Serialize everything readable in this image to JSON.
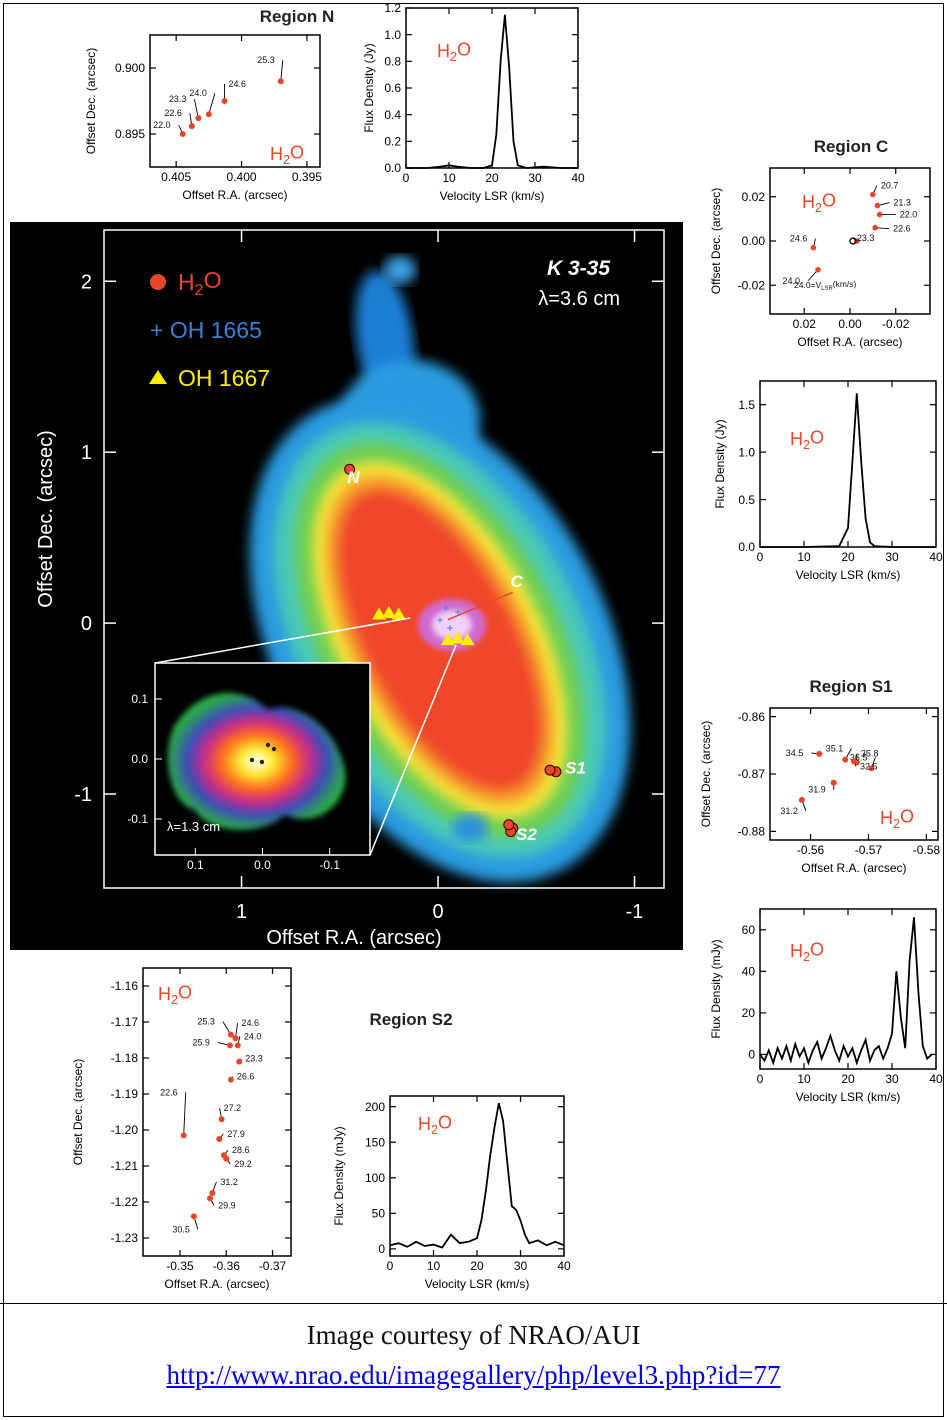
{
  "caption": {
    "credit": "Image courtesy of NRAO/AUI",
    "link": "http://www.nrao.edu/imagegallery/php/level3.php?id=77"
  },
  "colors": {
    "h2o": "#e8462a",
    "oh1665": "#3d7fd0",
    "oh1667": "#ffee00"
  },
  "chart_data": [
    {
      "id": "main",
      "type": "scatter",
      "title": "K 3-35",
      "subtitle": "λ=3.6 cm",
      "xlabel": "Offset R.A. (arcsec)",
      "ylabel": "Offset Dec. (arcsec)",
      "xlim": [
        1.7,
        -1.15
      ],
      "ylim": [
        -1.55,
        2.3
      ],
      "xticks": [
        1,
        0,
        -1
      ],
      "yticks": [
        2,
        1,
        0,
        -1
      ],
      "legend_position": "top-left",
      "legend": [
        {
          "label": "H",
          "sub": "2",
          "tail": "O",
          "color": "#e8462a",
          "marker": "circle"
        },
        {
          "label": "+ OH 1665",
          "sub": "",
          "tail": "",
          "color": "#3d7fd0",
          "marker": "none"
        },
        {
          "label": "OH 1667",
          "sub": "",
          "tail": "",
          "color": "#ffee00",
          "marker": "triangle"
        }
      ],
      "region_labels": [
        {
          "label": "N",
          "x": 0.43,
          "y": 0.82
        },
        {
          "label": "C",
          "x": -0.4,
          "y": 0.21
        },
        {
          "label": "S1",
          "x": -0.7,
          "y": -0.88
        },
        {
          "label": "S2",
          "x": -0.45,
          "y": -1.27
        }
      ],
      "h2o_points": [
        {
          "x": 0.45,
          "y": 0.9
        },
        {
          "x": -0.6,
          "y": -0.87
        },
        {
          "x": -0.57,
          "y": -0.86
        },
        {
          "x": -0.38,
          "y": -1.2
        },
        {
          "x": -0.37,
          "y": -1.22
        },
        {
          "x": -0.36,
          "y": -1.18
        }
      ],
      "oh1667_points": [
        {
          "x": 0.3,
          "y": 0.05
        },
        {
          "x": 0.25,
          "y": 0.06
        },
        {
          "x": 0.2,
          "y": 0.05
        },
        {
          "x": -0.05,
          "y": -0.1
        },
        {
          "x": -0.1,
          "y": -0.09
        },
        {
          "x": -0.15,
          "y": -0.1
        }
      ],
      "inset": {
        "label": "λ=1.3 cm",
        "xlim": [
          0.16,
          -0.16
        ],
        "ylim": [
          -0.16,
          0.16
        ],
        "xticks": [
          0.1,
          0.0,
          -0.1
        ],
        "yticks": [
          0.1,
          0.0,
          -0.1
        ]
      }
    },
    {
      "id": "regionN_pos",
      "type": "scatter",
      "title": "Region N",
      "xlabel": "Offset R.A. (arcsec)",
      "ylabel": "Offset Dec. (arcsec)",
      "xlim": [
        0.407,
        0.394
      ],
      "ylim": [
        0.8925,
        0.9025
      ],
      "xticks": [
        0.405,
        0.4,
        0.395
      ],
      "xtick_labels": [
        "0.405",
        "0.400",
        "0.395"
      ],
      "yticks": [
        0.9,
        0.895
      ],
      "ytick_labels": [
        "0.900",
        "0.895"
      ],
      "annotation": {
        "label": "H",
        "sub": "2",
        "tail": "O"
      },
      "points": [
        {
          "x": 0.4045,
          "y": 0.895,
          "label": "22.0"
        },
        {
          "x": 0.4038,
          "y": 0.8956,
          "label": "22.6"
        },
        {
          "x": 0.4033,
          "y": 0.8962,
          "label": "23.3"
        },
        {
          "x": 0.4025,
          "y": 0.8965,
          "label": "24.0"
        },
        {
          "x": 0.4013,
          "y": 0.8975,
          "label": "24.6"
        },
        {
          "x": 0.397,
          "y": 0.899,
          "label": "25.3"
        }
      ]
    },
    {
      "id": "regionN_spec",
      "type": "line",
      "xlabel": "Velocity LSR (km/s)",
      "ylabel": "Flux Density (Jy)",
      "xlim": [
        0,
        40
      ],
      "ylim": [
        0,
        1.2
      ],
      "xticks": [
        0,
        10,
        20,
        30,
        40
      ],
      "yticks": [
        0,
        0.2,
        0.4,
        0.6,
        0.8,
        1.0,
        1.2
      ],
      "ytick_labels": [
        "0.0",
        "0.2",
        "0.4",
        "0.6",
        "0.8",
        "1.0",
        "1.2"
      ],
      "annotation": {
        "label": "H",
        "sub": "2",
        "tail": "O"
      },
      "x": [
        0,
        5,
        8,
        10,
        12,
        15,
        18,
        20,
        21,
        22,
        23,
        24,
        25,
        26,
        28,
        32,
        36,
        40
      ],
      "values": [
        0,
        0,
        0.01,
        0.02,
        0.01,
        0,
        0,
        0.02,
        0.25,
        0.8,
        1.15,
        0.75,
        0.2,
        0.02,
        0,
        0.01,
        0,
        0
      ]
    },
    {
      "id": "regionC_pos",
      "type": "scatter",
      "title": "Region C",
      "xlabel": "Offset R.A. (arcsec)",
      "ylabel": "Offset Dec. (arcsec)",
      "xlim": [
        0.035,
        -0.035
      ],
      "ylim": [
        -0.033,
        0.033
      ],
      "xticks": [
        0.02,
        0,
        -0.02
      ],
      "xtick_labels": [
        "0.02",
        "0.00",
        "-0.02"
      ],
      "yticks": [
        0.02,
        0,
        -0.02
      ],
      "ytick_labels": [
        "0.02",
        "0.00",
        "-0.02"
      ],
      "annotation": {
        "label": "H",
        "sub": "2",
        "tail": "O"
      },
      "legend_note": "24.0=V",
      "legend_note_sub": "LSR",
      "legend_note_tail": "(km/s)",
      "points": [
        {
          "x": -0.01,
          "y": 0.021,
          "label": "20.7"
        },
        {
          "x": -0.012,
          "y": 0.016,
          "label": "21.3"
        },
        {
          "x": -0.013,
          "y": 0.012,
          "label": "22.0"
        },
        {
          "x": -0.011,
          "y": 0.006,
          "label": "22.6"
        },
        {
          "x": -0.003,
          "y": 0.0,
          "label": "23.3"
        },
        {
          "x": 0.016,
          "y": -0.003,
          "label": "24.6"
        },
        {
          "x": 0.014,
          "y": -0.013,
          "label": "24.0"
        }
      ]
    },
    {
      "id": "regionC_spec",
      "type": "line",
      "xlabel": "Velocity LSR (km/s)",
      "ylabel": "Flux Density (Jy)",
      "xlim": [
        0,
        40
      ],
      "ylim": [
        0,
        1.75
      ],
      "xticks": [
        0,
        10,
        20,
        30,
        40
      ],
      "yticks": [
        0,
        0.5,
        1.0,
        1.5
      ],
      "ytick_labels": [
        "0.0",
        "0.5",
        "1.0",
        "1.5"
      ],
      "annotation": {
        "label": "H",
        "sub": "2",
        "tail": "O"
      },
      "x": [
        0,
        10,
        18,
        20,
        21,
        22,
        23,
        24,
        25,
        26,
        30,
        40
      ],
      "values": [
        0,
        0,
        0.01,
        0.2,
        0.9,
        1.62,
        0.9,
        0.3,
        0.05,
        0.01,
        0,
        0
      ]
    },
    {
      "id": "regionS1_pos",
      "type": "scatter",
      "title": "Region S1",
      "xlabel": "Offset R.A. (arcsec)",
      "ylabel": "Offset Dec. (arcsec)",
      "xlim": [
        -0.553,
        -0.582
      ],
      "ylim": [
        -0.8815,
        -0.8585
      ],
      "xticks": [
        -0.56,
        -0.57,
        -0.58
      ],
      "xtick_labels": [
        "-0.56",
        "-0.57",
        "-0.58"
      ],
      "yticks": [
        -0.86,
        -0.87,
        -0.88
      ],
      "ytick_labels": [
        "-0.86",
        "-0.87",
        "-0.88"
      ],
      "annotation": {
        "label": "H",
        "sub": "2",
        "tail": "O"
      },
      "points": [
        {
          "x": -0.5615,
          "y": -0.8665,
          "label": "34.5"
        },
        {
          "x": -0.566,
          "y": -0.8675,
          "label": "35.1"
        },
        {
          "x": -0.568,
          "y": -0.868,
          "label": "35.8"
        },
        {
          "x": -0.5705,
          "y": -0.869,
          "label": "36.5"
        },
        {
          "x": -0.5675,
          "y": -0.8678,
          "label": "32.5"
        },
        {
          "x": -0.564,
          "y": -0.8715,
          "label": "31.9"
        },
        {
          "x": -0.5585,
          "y": -0.8745,
          "label": "31.2"
        }
      ]
    },
    {
      "id": "regionS1_spec",
      "type": "line",
      "xlabel": "Velocity LSR (km/s)",
      "ylabel": "Flux Density (mJy)",
      "xlim": [
        0,
        40
      ],
      "ylim": [
        -7,
        70
      ],
      "xticks": [
        0,
        10,
        20,
        30,
        40
      ],
      "yticks": [
        0,
        20,
        40,
        60
      ],
      "annotation": {
        "label": "H",
        "sub": "2",
        "tail": "O"
      },
      "x": [
        0,
        1,
        2,
        3,
        4,
        5,
        6,
        7,
        8,
        9,
        10,
        11,
        12,
        13,
        14,
        15,
        16,
        17,
        18,
        19,
        20,
        21,
        22,
        23,
        24,
        25,
        26,
        27,
        28,
        29,
        30,
        31,
        32,
        33,
        34,
        35,
        36,
        37,
        38,
        39
      ],
      "values": [
        0,
        -3,
        2,
        -4,
        3,
        -2,
        4,
        -3,
        5,
        -1,
        3,
        -4,
        2,
        6,
        -2,
        3,
        9,
        2,
        -3,
        4,
        -1,
        3,
        -4,
        2,
        7,
        -3,
        2,
        4,
        -2,
        3,
        10,
        40,
        18,
        3,
        45,
        66,
        30,
        4,
        -2,
        0
      ]
    },
    {
      "id": "regionS2_pos",
      "type": "scatter",
      "title": "Region S2",
      "xlabel": "Offset R.A. (arcsec)",
      "ylabel": "Offset Dec. (arcsec)",
      "xlim": [
        -0.342,
        -0.374
      ],
      "ylim": [
        -1.235,
        -1.155
      ],
      "xticks": [
        -0.35,
        -0.36,
        -0.37
      ],
      "yticks": [
        -1.16,
        -1.17,
        -1.18,
        -1.19,
        -1.2,
        -1.21,
        -1.22,
        -1.23
      ],
      "ytick_labels": [
        "-1.16",
        "-1.17",
        "-1.18",
        "-1.19",
        "-1.20",
        "-1.21",
        "-1.22",
        "-1.23"
      ],
      "annotation": {
        "label": "H",
        "sub": "2",
        "tail": "O"
      },
      "points": [
        {
          "x": -0.361,
          "y": -1.1735,
          "label": "25.3"
        },
        {
          "x": -0.362,
          "y": -1.1745,
          "label": "24.6"
        },
        {
          "x": -0.3608,
          "y": -1.1765,
          "label": "25.9"
        },
        {
          "x": -0.3625,
          "y": -1.1765,
          "label": "24.0"
        },
        {
          "x": -0.3628,
          "y": -1.181,
          "label": "23.3"
        },
        {
          "x": -0.361,
          "y": -1.186,
          "label": "26.6"
        },
        {
          "x": -0.359,
          "y": -1.197,
          "label": "27.2"
        },
        {
          "x": -0.3508,
          "y": -1.2015,
          "label": "22.6"
        },
        {
          "x": -0.3585,
          "y": -1.2025,
          "label": "27.9"
        },
        {
          "x": -0.3595,
          "y": -1.207,
          "label": "28.6"
        },
        {
          "x": -0.36,
          "y": -1.208,
          "label": "29.2"
        },
        {
          "x": -0.357,
          "y": -1.2175,
          "label": "31.2"
        },
        {
          "x": -0.3565,
          "y": -1.219,
          "label": "29.9"
        },
        {
          "x": -0.353,
          "y": -1.224,
          "label": "30.5"
        }
      ]
    },
    {
      "id": "regionS2_spec",
      "type": "line",
      "xlabel": "Velocity LSR (km/s)",
      "ylabel": "Flux Density (mJy)",
      "xlim": [
        0,
        40
      ],
      "ylim": [
        -10,
        215
      ],
      "xticks": [
        0,
        10,
        20,
        30,
        40
      ],
      "yticks": [
        0,
        50,
        100,
        150,
        200
      ],
      "annotation": {
        "label": "H",
        "sub": "2",
        "tail": "O"
      },
      "x": [
        0,
        2,
        4,
        6,
        8,
        10,
        12,
        14,
        16,
        18,
        20,
        21,
        22,
        23,
        24,
        25,
        26,
        27,
        28,
        29,
        30,
        31,
        32,
        34,
        36,
        38,
        40
      ],
      "values": [
        5,
        8,
        3,
        10,
        4,
        6,
        2,
        20,
        8,
        10,
        15,
        40,
        80,
        130,
        170,
        205,
        180,
        120,
        60,
        55,
        40,
        20,
        8,
        12,
        5,
        10,
        5
      ]
    }
  ]
}
